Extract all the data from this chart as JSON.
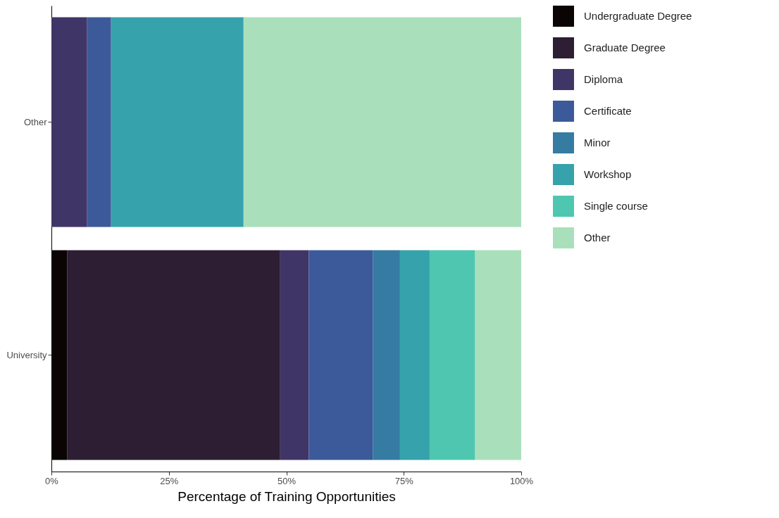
{
  "chart_data": {
    "type": "bar",
    "orientation": "horizontal",
    "stacked": true,
    "xlabel": "Percentage of Training Opportunities",
    "categories": [
      "Other",
      "University"
    ],
    "series": [
      {
        "name": "Undergraduate Degree",
        "color": "#0b0405",
        "values": [
          0,
          3.4
        ]
      },
      {
        "name": "Graduate Degree",
        "color": "#2d1e33",
        "values": [
          0,
          45.3
        ]
      },
      {
        "name": "Diploma",
        "color": "#403567",
        "values": [
          7.6,
          6.1
        ]
      },
      {
        "name": "Certificate",
        "color": "#3c5a9a",
        "values": [
          5.1,
          13.6
        ]
      },
      {
        "name": "Minor",
        "color": "#357ba2",
        "values": [
          0,
          5.8
        ]
      },
      {
        "name": "Workshop",
        "color": "#36a2ac",
        "values": [
          28.2,
          6.3
        ]
      },
      {
        "name": "Single course",
        "color": "#4fc7b0",
        "values": [
          0,
          9.7
        ]
      },
      {
        "name": "Other",
        "color": "#a9e0bb",
        "values": [
          59.1,
          9.8
        ]
      }
    ],
    "xlim": [
      0,
      100
    ],
    "xticks": [
      {
        "value": 0,
        "label": "0%"
      },
      {
        "value": 25,
        "label": "25%"
      },
      {
        "value": 50,
        "label": "50%"
      },
      {
        "value": 75,
        "label": "75%"
      },
      {
        "value": 100,
        "label": "100%"
      }
    ],
    "grid": false,
    "legend": "right"
  }
}
